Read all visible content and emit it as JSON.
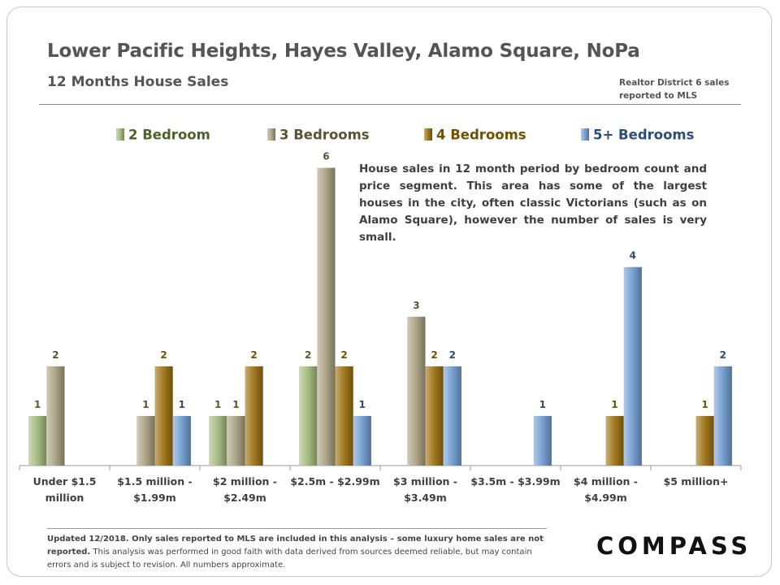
{
  "header": {
    "title": "Lower Pacific Heights, Hayes Valley, Alamo Square, NoPa",
    "subtitle": "12 Months House Sales",
    "source_line1": "Realtor District 6 sales",
    "source_line2": "reported to MLS"
  },
  "annotation": "House sales in 12 month period by bedroom count and price segment. This area has some of the largest houses in the city, often classic Victorians (such as on Alamo Square), however the number of sales is very small.",
  "footer": {
    "bold_text": "Updated 12/2018. Only sales reported to MLS are included in this analysis – some luxury home sales are not reported.",
    "normal_text": "This analysis was performed in good faith with data derived from sources deemed reliable, but may contain errors and is subject to revision. All numbers approximate."
  },
  "logo": {
    "text": "COMPASS"
  },
  "colors": {
    "2 Bedroom": "#a3b87a",
    "3 Bedrooms": "#a79f7f",
    "4 Bedrooms": "#9a6e0c",
    "5+ Bedrooms": "#6f9bd0"
  },
  "label_colors": {
    "2 Bedroom": "#4f6128",
    "3 Bedrooms": "#5a5230",
    "4 Bedrooms": "#6f5200",
    "5+ Bedrooms": "#2c4d75"
  },
  "chart_data": {
    "type": "bar",
    "title": "12 Months House Sales",
    "xlabel": "",
    "ylabel": "",
    "ylim": [
      0,
      6.5
    ],
    "grid": false,
    "legend": "top",
    "categories": [
      [
        "Under $1.5",
        "million"
      ],
      [
        "$1.5 million -",
        "$1.99m"
      ],
      [
        "$2 million -",
        "$2.49m"
      ],
      [
        "$2.5m - $2.99m"
      ],
      [
        "$3 million -",
        "$3.49m"
      ],
      [
        "$3.5m - $3.99m"
      ],
      [
        "$4 million -",
        "$4.99m"
      ],
      [
        "$5 million+"
      ]
    ],
    "series": [
      {
        "name": "2 Bedroom",
        "values": [
          1,
          null,
          1,
          2,
          null,
          null,
          null,
          null
        ]
      },
      {
        "name": "3 Bedrooms",
        "values": [
          2,
          1,
          1,
          6,
          3,
          null,
          null,
          null
        ]
      },
      {
        "name": "4 Bedrooms",
        "values": [
          null,
          2,
          2,
          2,
          2,
          null,
          1,
          1
        ]
      },
      {
        "name": "5+ Bedrooms",
        "values": [
          null,
          1,
          null,
          1,
          2,
          1,
          4,
          2
        ]
      }
    ]
  }
}
